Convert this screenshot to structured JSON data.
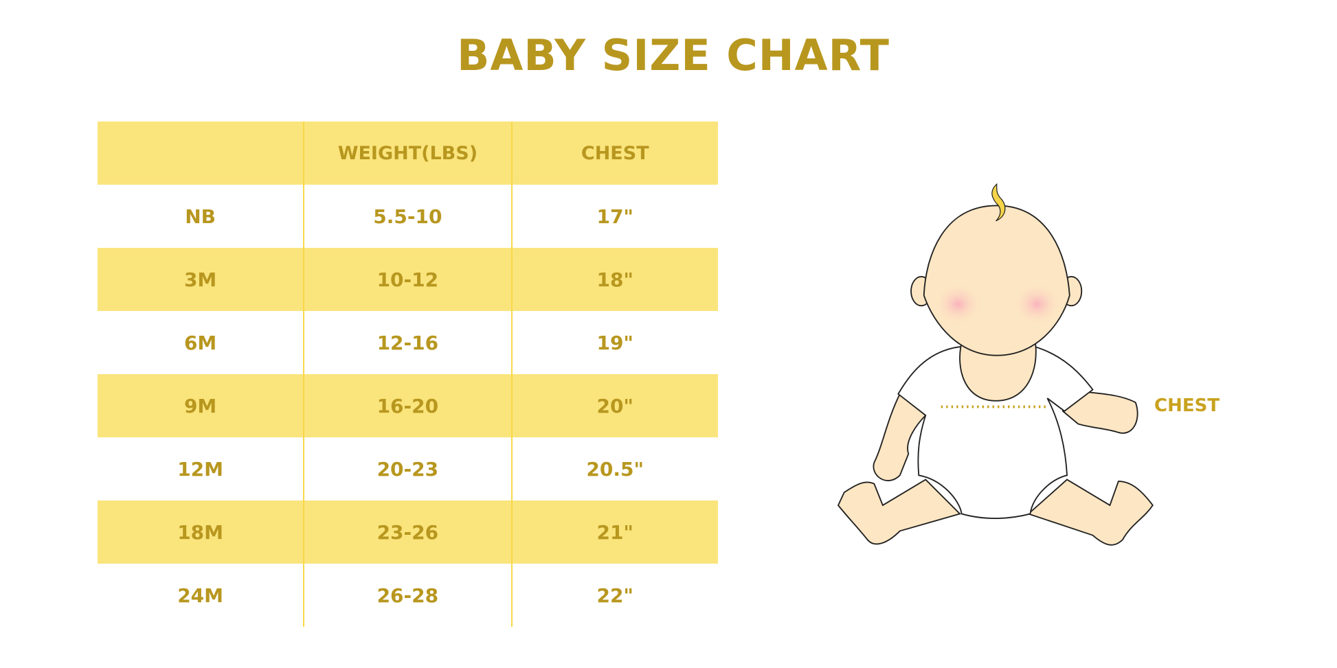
{
  "title": "BABY SIZE CHART",
  "table": {
    "headers": [
      "",
      "WEIGHT(LBS)",
      "CHEST"
    ],
    "rows": [
      [
        "NB",
        "5.5-10",
        "17\""
      ],
      [
        "3M",
        "10-12",
        "18\""
      ],
      [
        "6M",
        "12-16",
        "19\""
      ],
      [
        "9M",
        "16-20",
        "20\""
      ],
      [
        "12M",
        "20-23",
        "20.5\""
      ],
      [
        "18M",
        "23-26",
        "21\""
      ],
      [
        "24M",
        "26-28",
        "22\""
      ]
    ]
  },
  "illustration": {
    "chest_label": "CHEST"
  },
  "colors": {
    "text": "#b8971f",
    "band": "#fae47c",
    "skin": "#fde6c3"
  }
}
